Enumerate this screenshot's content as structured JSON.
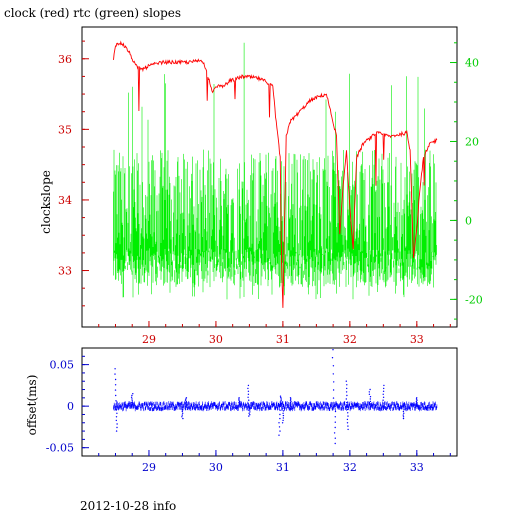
{
  "title": "clock (red) rtc (green) slopes",
  "footer": "2012-10-28 info",
  "colors": {
    "clock": "#ff0000",
    "rtc": "#00ee00",
    "offset": "#0000ff",
    "left_axis": "#cc0000",
    "right_axis": "#00cc00",
    "bottom_axis": "#0000cc"
  },
  "chart_data": [
    {
      "type": "line",
      "title": "clock (red) rtc (green) slopes",
      "ylabel": "clockslope",
      "xlim": [
        28.0,
        33.6
      ],
      "x_ticks": [
        "29",
        "30",
        "31",
        "32",
        "33"
      ],
      "ylim_left": [
        32.2,
        36.45
      ],
      "y_ticks_left": [
        "33",
        "34",
        "35",
        "36"
      ],
      "ylim_right": [
        -27,
        49
      ],
      "y_ticks_right": [
        "-20",
        "0",
        "20",
        "40"
      ],
      "series": [
        {
          "name": "clock",
          "axis": "left",
          "x": [
            28.47,
            28.5,
            28.6,
            28.7,
            28.8,
            28.9,
            29.0,
            29.2,
            29.4,
            29.6,
            29.8,
            29.9,
            29.95,
            30.0,
            30.1,
            30.2,
            30.4,
            30.6,
            30.75,
            30.85,
            30.9,
            30.93,
            30.96,
            30.98,
            31.0,
            31.05,
            31.1,
            31.2,
            31.4,
            31.5,
            31.65,
            31.75,
            31.8,
            31.85,
            31.9,
            31.95,
            32.0,
            32.05,
            32.1,
            32.2,
            32.4,
            32.6,
            32.85,
            32.9,
            32.95,
            33.0,
            33.05,
            33.1,
            33.2,
            33.3
          ],
          "y": [
            36.0,
            36.2,
            36.22,
            36.1,
            35.9,
            35.85,
            35.9,
            35.95,
            35.95,
            35.95,
            35.98,
            35.7,
            35.5,
            35.62,
            35.6,
            35.68,
            35.75,
            35.73,
            35.68,
            35.6,
            35.1,
            34.85,
            34.6,
            33.1,
            32.45,
            34.9,
            35.1,
            35.2,
            35.4,
            35.45,
            35.5,
            35.1,
            34.9,
            33.5,
            34.2,
            34.7,
            33.9,
            33.3,
            34.6,
            34.8,
            34.95,
            34.9,
            34.95,
            34.7,
            33.2,
            33.6,
            34.2,
            34.6,
            34.8,
            34.85
          ]
        },
        {
          "name": "rtc",
          "axis": "right",
          "x_range": [
            28.47,
            33.3
          ],
          "typical_range": [
            -17,
            20
          ],
          "max": 45,
          "min": -20
        }
      ]
    },
    {
      "type": "scatter",
      "ylabel": "offset(ms)",
      "xlim": [
        28.0,
        33.6
      ],
      "x_ticks": [
        "29",
        "30",
        "31",
        "32",
        "33"
      ],
      "ylim": [
        -0.06,
        0.07
      ],
      "y_ticks": [
        "0.05",
        "0",
        "-0.05"
      ],
      "series": [
        {
          "name": "offset",
          "x_range": [
            28.47,
            33.3
          ],
          "typical": 0,
          "spikes": [
            {
              "x": 28.5,
              "y": 0.045
            },
            {
              "x": 28.52,
              "y": -0.03
            },
            {
              "x": 28.75,
              "y": 0.015
            },
            {
              "x": 29.5,
              "y": -0.015
            },
            {
              "x": 29.55,
              "y": 0.01
            },
            {
              "x": 30.35,
              "y": 0.01
            },
            {
              "x": 30.48,
              "y": 0.025
            },
            {
              "x": 30.5,
              "y": -0.012
            },
            {
              "x": 30.95,
              "y": -0.035
            },
            {
              "x": 30.97,
              "y": 0.012
            },
            {
              "x": 31.0,
              "y": -0.02
            },
            {
              "x": 31.12,
              "y": 0.01
            },
            {
              "x": 31.75,
              "y": 0.068
            },
            {
              "x": 31.78,
              "y": -0.045
            },
            {
              "x": 31.95,
              "y": 0.03
            },
            {
              "x": 31.97,
              "y": -0.028
            },
            {
              "x": 32.3,
              "y": 0.02
            },
            {
              "x": 32.5,
              "y": 0.025
            },
            {
              "x": 32.8,
              "y": -0.015
            },
            {
              "x": 33.0,
              "y": 0.01
            }
          ]
        }
      ]
    }
  ]
}
